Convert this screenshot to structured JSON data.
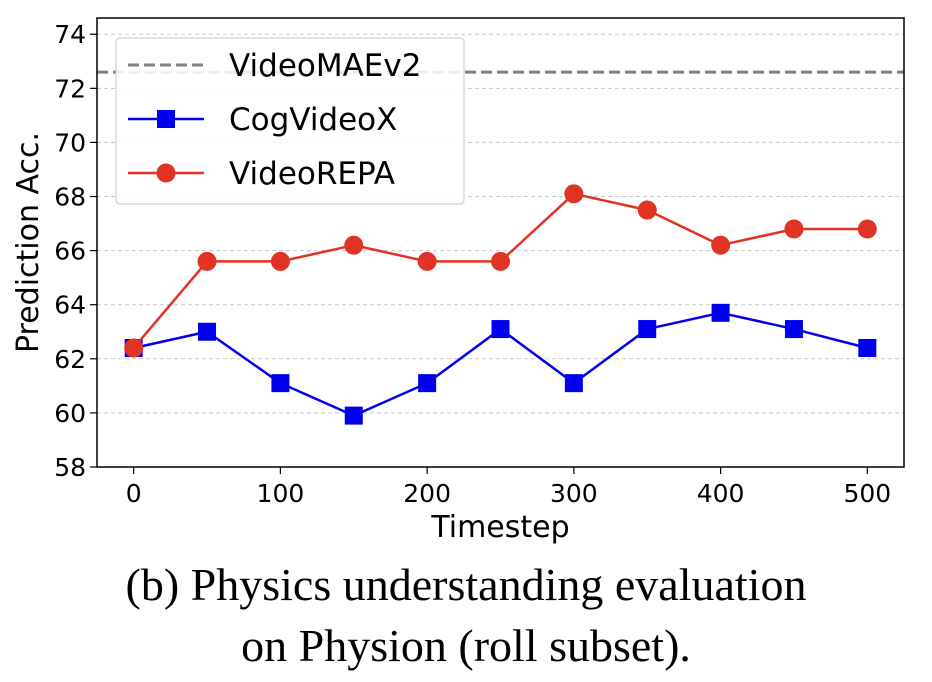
{
  "chart_data": {
    "type": "line",
    "x": [
      0,
      50,
      100,
      150,
      200,
      250,
      300,
      350,
      400,
      450,
      500
    ],
    "series": [
      {
        "name": "CogVideoX",
        "color": "#0000ee",
        "marker": "square",
        "values": [
          62.4,
          63.0,
          61.1,
          59.9,
          61.1,
          63.1,
          61.1,
          63.1,
          63.7,
          63.1,
          62.4
        ]
      },
      {
        "name": "VideoREPA",
        "color": "#e03323",
        "marker": "circle",
        "values": [
          62.4,
          65.6,
          65.6,
          66.2,
          65.6,
          65.6,
          68.1,
          67.5,
          66.2,
          66.8,
          66.8
        ]
      }
    ],
    "reference_lines": [
      {
        "name": "VideoMAEv2",
        "value": 72.6,
        "color": "#808080",
        "style": "dashed"
      }
    ],
    "xlabel": "Timestep",
    "ylabel": "Prediction Acc.",
    "xlim": [
      -25,
      525
    ],
    "ylim": [
      58,
      74.6
    ],
    "xticks": [
      0,
      100,
      200,
      300,
      400,
      500
    ],
    "yticks": [
      58,
      60,
      62,
      64,
      66,
      68,
      70,
      72,
      74
    ],
    "grid": true,
    "legend_position": "top-left"
  },
  "caption": {
    "line1": "(b) Physics understanding evaluation",
    "line2": "on Physion (roll subset)."
  }
}
